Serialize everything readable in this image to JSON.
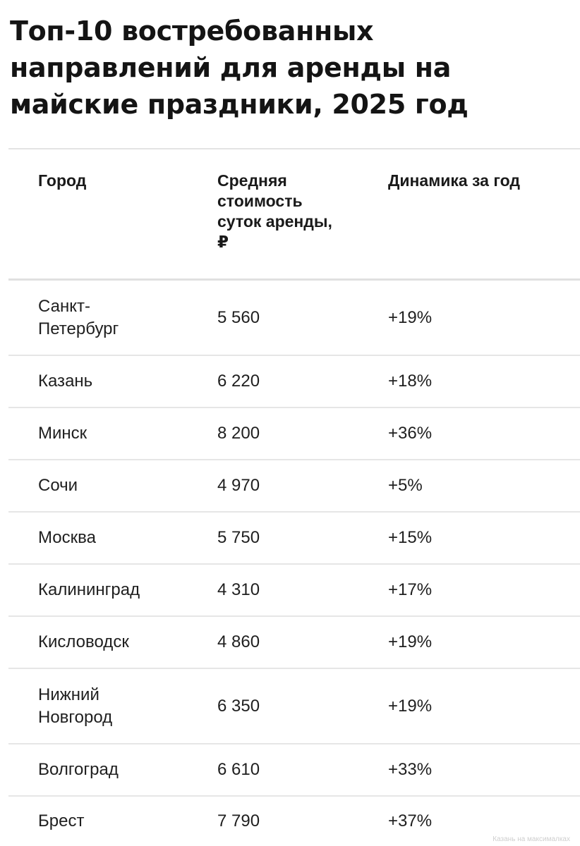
{
  "title": "Топ-10 востребованных направлений для аренды на майские праздники, 2025 год",
  "columns": [
    "Город",
    "Средняя стоимость суток аренды, ₽",
    "Динамика за год"
  ],
  "rows": [
    {
      "city": "Санкт-Петербург",
      "price": "5 560",
      "change": "+19%"
    },
    {
      "city": "Казань",
      "price": "6 220",
      "change": "+18%"
    },
    {
      "city": "Минск",
      "price": "8 200",
      "change": "+36%"
    },
    {
      "city": "Сочи",
      "price": "4 970",
      "change": "+5%"
    },
    {
      "city": "Москва",
      "price": "5 750",
      "change": "+15%"
    },
    {
      "city": "Калининград",
      "price": "4 310",
      "change": "+17%"
    },
    {
      "city": "Кисловодск",
      "price": "4 860",
      "change": "+19%"
    },
    {
      "city": "Нижний Новгород",
      "price": "6 350",
      "change": "+19%"
    },
    {
      "city": "Волгоград",
      "price": "6 610",
      "change": "+33%"
    },
    {
      "city": "Брест",
      "price": "7 790",
      "change": "+37%"
    }
  ],
  "watermark": "Казань на максималках"
}
